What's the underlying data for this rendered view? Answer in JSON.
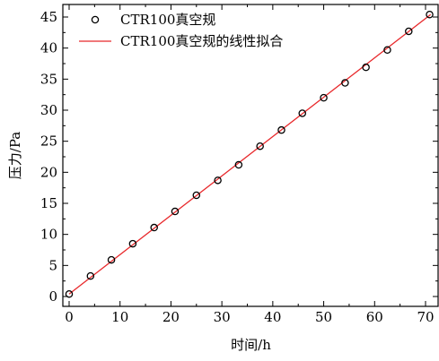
{
  "chart_data": {
    "type": "scatter",
    "xlabel": "时间/h",
    "ylabel": "压力/Pa",
    "xlim": [
      -1,
      72
    ],
    "ylim": [
      -1,
      46.5
    ],
    "x_ticks": [
      0,
      10,
      20,
      30,
      40,
      50,
      60,
      70
    ],
    "y_ticks": [
      0,
      5,
      10,
      15,
      20,
      25,
      30,
      35,
      40,
      45
    ],
    "grid": false,
    "legend_position": "top-left",
    "series": [
      {
        "name": "CTR100真空规",
        "kind": "scatter",
        "marker": "open-circle",
        "color": "#000000",
        "x": [
          0,
          4.2,
          8.3,
          12.5,
          16.7,
          20.8,
          25.0,
          29.2,
          33.3,
          37.5,
          41.7,
          45.8,
          50.0,
          54.2,
          58.3,
          62.5,
          66.7,
          70.8
        ],
        "y": [
          0.4,
          3.3,
          5.9,
          8.5,
          11.1,
          13.7,
          16.3,
          18.7,
          21.2,
          24.2,
          26.8,
          29.5,
          32.0,
          34.4,
          36.9,
          39.7,
          42.7,
          45.4
        ]
      },
      {
        "name": "CTR100真空规的线性拟合",
        "kind": "line",
        "color": "#e8282b",
        "x": [
          0,
          71
        ],
        "y": [
          0.4,
          45.4
        ]
      }
    ]
  }
}
